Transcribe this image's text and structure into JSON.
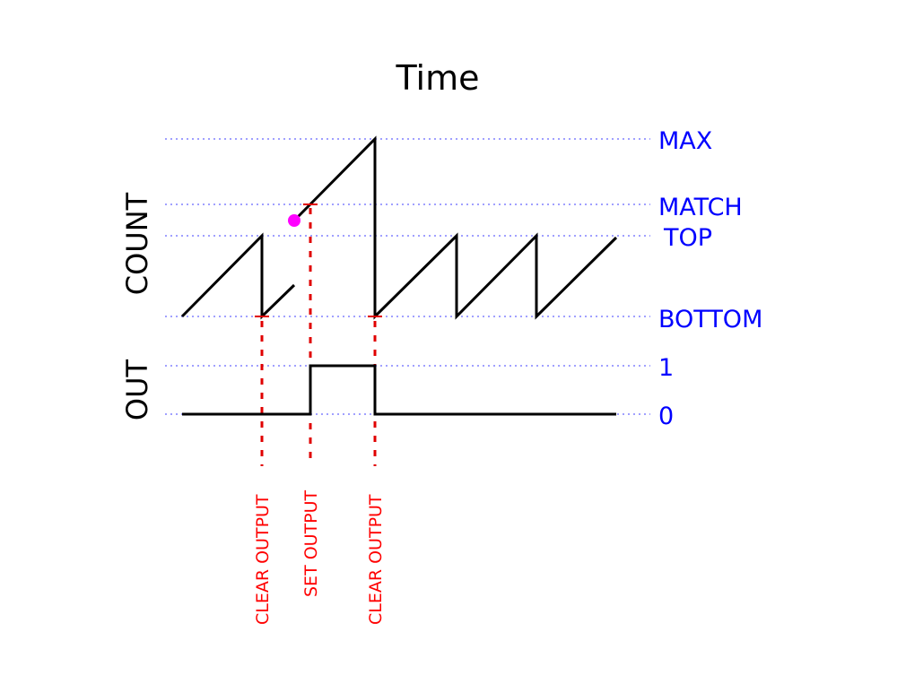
{
  "title": "Time",
  "axes": {
    "count_label": "COUNT",
    "out_label": "OUT"
  },
  "levels": {
    "max": "MAX",
    "match": "MATCH",
    "top": "TOP",
    "bottom": "BOTTOM",
    "one": "1",
    "zero": "0"
  },
  "events": [
    {
      "label": "CLEAR OUTPUT",
      "level": "bottom"
    },
    {
      "label": "SET OUTPUT",
      "level": "match"
    },
    {
      "label": "CLEAR OUTPUT",
      "level": "bottom"
    }
  ],
  "colors": {
    "guide": "#0000ff",
    "label": "#0000ff",
    "event": "#ff0000",
    "marker": "#ff00ff",
    "signal": "#000000"
  },
  "icons": {
    "marker": "magenta-dot"
  }
}
